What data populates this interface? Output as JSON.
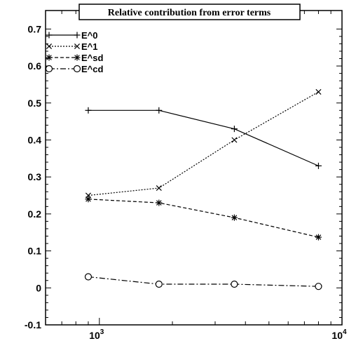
{
  "chart_data": {
    "type": "line",
    "title": "Relative contribution from error terms",
    "xlabel": "",
    "ylabel": "",
    "x_scale": "log",
    "xlim": [
      600,
      10000
    ],
    "ylim": [
      -0.1,
      0.75
    ],
    "x_ticks": [
      {
        "value": 1000,
        "base": "10",
        "exp": "3"
      },
      {
        "value": 10000,
        "base": "10",
        "exp": "4"
      }
    ],
    "y_ticks": [
      -0.1,
      0,
      0.1,
      0.2,
      0.3,
      0.4,
      0.5,
      0.6,
      0.7
    ],
    "y_tick_labels": [
      "-0.1",
      "0",
      "0.1",
      "0.2",
      "0.3",
      "0.4",
      "0.5",
      "0.6",
      "0.7"
    ],
    "grid": false,
    "legend_position": "top-left",
    "x": [
      900,
      1760,
      3600,
      8000
    ],
    "series": [
      {
        "name": "E^0",
        "values": [
          0.48,
          0.48,
          0.43,
          0.33
        ],
        "marker": "plus",
        "dash": "solid"
      },
      {
        "name": "E^1",
        "values": [
          0.25,
          0.27,
          0.4,
          0.53
        ],
        "marker": "cross",
        "dash": "dotted"
      },
      {
        "name": "E^sd",
        "values": [
          0.24,
          0.23,
          0.19,
          0.137
        ],
        "marker": "star",
        "dash": "dashed"
      },
      {
        "name": "E^cd",
        "values": [
          0.03,
          0.01,
          0.01,
          0.004
        ],
        "marker": "circle",
        "dash": "dashdot"
      }
    ]
  }
}
